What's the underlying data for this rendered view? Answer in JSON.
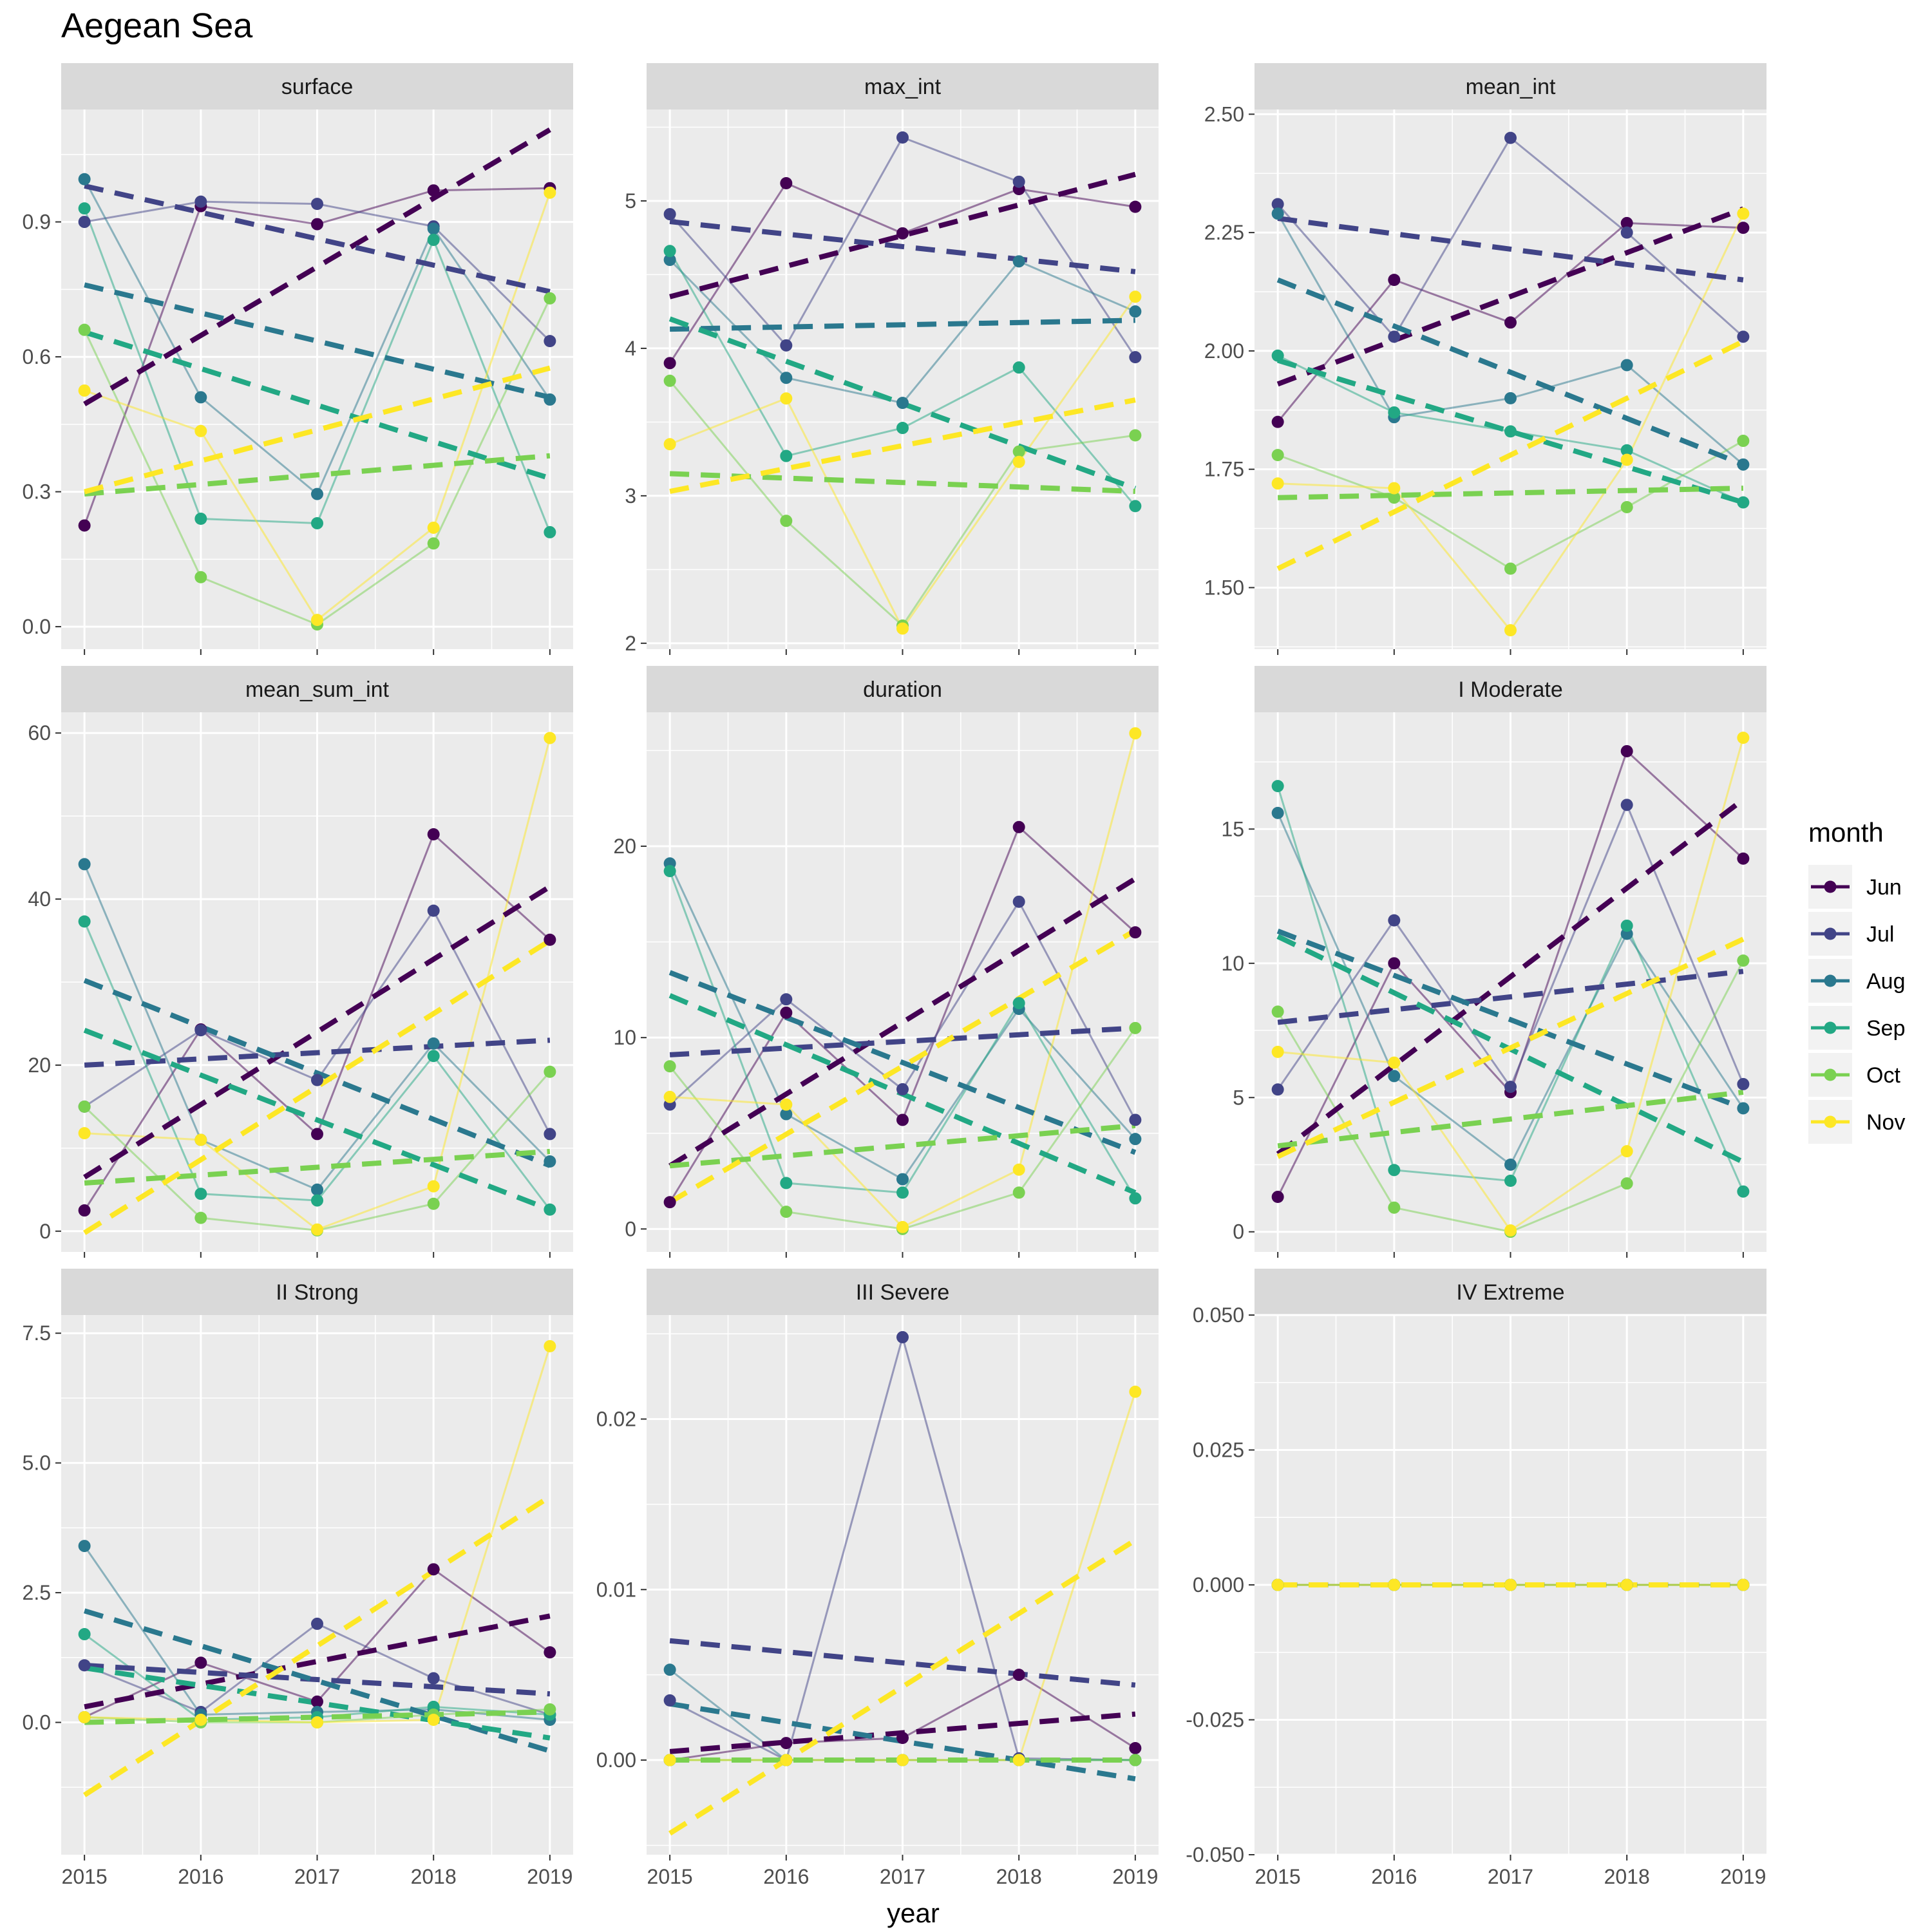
{
  "title": "Aegean Sea",
  "xlabel": "year",
  "legend": {
    "title": "month",
    "position": "right",
    "entries": [
      {
        "label": "Jun",
        "color": "#440154"
      },
      {
        "label": "Jul",
        "color": "#414487"
      },
      {
        "label": "Aug",
        "color": "#2A788E"
      },
      {
        "label": "Sep",
        "color": "#22A884"
      },
      {
        "label": "Oct",
        "color": "#7AD151"
      },
      {
        "label": "Nov",
        "color": "#FDE725"
      }
    ]
  },
  "chart_data": [
    {
      "type": "line",
      "panel": "surface",
      "x": [
        2015,
        2016,
        2017,
        2018,
        2019
      ],
      "ylim": [
        -0.05,
        1.15
      ],
      "yticks": [
        0.0,
        0.3,
        0.6,
        0.9
      ],
      "ytick_labels": [
        "0.0",
        "0.3",
        "0.6",
        "0.9"
      ],
      "series": [
        {
          "name": "Jun",
          "values": [
            0.225,
            0.935,
            0.895,
            0.97,
            0.975
          ],
          "trend": [
            0.495,
            1.105
          ]
        },
        {
          "name": "Jul",
          "values": [
            0.9,
            0.945,
            0.94,
            0.89,
            0.635
          ],
          "trend": [
            0.98,
            0.745
          ]
        },
        {
          "name": "Aug",
          "values": [
            0.995,
            0.51,
            0.295,
            0.885,
            0.505
          ],
          "trend": [
            0.76,
            0.51
          ]
        },
        {
          "name": "Sep",
          "values": [
            0.93,
            0.24,
            0.23,
            0.86,
            0.21
          ],
          "trend": [
            0.655,
            0.33
          ]
        },
        {
          "name": "Oct",
          "values": [
            0.66,
            0.11,
            0.005,
            0.185,
            0.73
          ],
          "trend": [
            0.295,
            0.38
          ]
        },
        {
          "name": "Nov",
          "values": [
            0.525,
            0.435,
            0.015,
            0.22,
            0.965
          ],
          "trend": [
            0.3,
            0.575
          ]
        }
      ]
    },
    {
      "type": "line",
      "panel": "max_int",
      "x": [
        2015,
        2016,
        2017,
        2018,
        2019
      ],
      "ylim": [
        1.96,
        5.62
      ],
      "yticks": [
        2,
        3,
        4,
        5
      ],
      "ytick_labels": [
        "2",
        "3",
        "4",
        "5"
      ],
      "series": [
        {
          "name": "Jun",
          "values": [
            3.9,
            5.12,
            4.78,
            5.08,
            4.96
          ],
          "trend": [
            4.35,
            5.18
          ]
        },
        {
          "name": "Jul",
          "values": [
            4.91,
            4.02,
            5.43,
            5.13,
            3.94
          ],
          "trend": [
            4.86,
            4.52
          ]
        },
        {
          "name": "Aug",
          "values": [
            4.6,
            3.8,
            3.63,
            4.59,
            4.25
          ],
          "trend": [
            4.13,
            4.19
          ]
        },
        {
          "name": "Sep",
          "values": [
            4.66,
            3.27,
            3.46,
            3.87,
            2.93
          ],
          "trend": [
            4.2,
            3.05
          ]
        },
        {
          "name": "Oct",
          "values": [
            3.78,
            2.83,
            2.12,
            3.3,
            3.41
          ],
          "trend": [
            3.15,
            3.03
          ]
        },
        {
          "name": "Nov",
          "values": [
            3.35,
            3.66,
            2.1,
            3.23,
            4.35
          ],
          "trend": [
            3.03,
            3.65
          ]
        }
      ]
    },
    {
      "type": "line",
      "panel": "mean_int",
      "x": [
        2015,
        2016,
        2017,
        2018,
        2019
      ],
      "ylim": [
        1.37,
        2.51
      ],
      "yticks": [
        1.5,
        1.75,
        2.0,
        2.25,
        2.5
      ],
      "ytick_labels": [
        "1.50",
        "1.75",
        "2.00",
        "2.25",
        "2.50"
      ],
      "series": [
        {
          "name": "Jun",
          "values": [
            1.85,
            2.15,
            2.06,
            2.27,
            2.26
          ],
          "trend": [
            1.93,
            2.3
          ]
        },
        {
          "name": "Jul",
          "values": [
            2.31,
            2.03,
            2.45,
            2.25,
            2.03
          ],
          "trend": [
            2.28,
            2.15
          ]
        },
        {
          "name": "Aug",
          "values": [
            2.29,
            1.86,
            1.9,
            1.97,
            1.76
          ],
          "trend": [
            2.15,
            1.76
          ]
        },
        {
          "name": "Sep",
          "values": [
            1.99,
            1.87,
            1.83,
            1.79,
            1.68
          ],
          "trend": [
            1.98,
            1.68
          ]
        },
        {
          "name": "Oct",
          "values": [
            1.78,
            1.69,
            1.54,
            1.67,
            1.81
          ],
          "trend": [
            1.69,
            1.71
          ]
        },
        {
          "name": "Nov",
          "values": [
            1.72,
            1.71,
            1.41,
            1.77,
            2.29
          ],
          "trend": [
            1.54,
            2.02
          ]
        }
      ]
    },
    {
      "type": "line",
      "panel": "mean_sum_int",
      "x": [
        2015,
        2016,
        2017,
        2018,
        2019
      ],
      "ylim": [
        -2.5,
        62.5
      ],
      "yticks": [
        0,
        20,
        40,
        60
      ],
      "ytick_labels": [
        "0",
        "20",
        "40",
        "60"
      ],
      "series": [
        {
          "name": "Jun",
          "values": [
            2.5,
            24.3,
            11.7,
            47.8,
            35.1
          ],
          "trend": [
            6.5,
            41.5
          ]
        },
        {
          "name": "Jul",
          "values": [
            15.0,
            24.2,
            18.2,
            38.6,
            11.7
          ],
          "trend": [
            20.0,
            23.0
          ]
        },
        {
          "name": "Aug",
          "values": [
            44.2,
            11.0,
            5.0,
            22.6,
            8.4
          ],
          "trend": [
            30.2,
            7.9
          ]
        },
        {
          "name": "Sep",
          "values": [
            37.3,
            4.5,
            3.7,
            21.1,
            2.6
          ],
          "trend": [
            24.2,
            2.6
          ]
        },
        {
          "name": "Oct",
          "values": [
            15.0,
            1.6,
            0.1,
            3.3,
            19.2
          ],
          "trend": [
            5.8,
            9.6
          ]
        },
        {
          "name": "Nov",
          "values": [
            11.8,
            11.0,
            0.2,
            5.4,
            59.4
          ],
          "trend": [
            -0.2,
            35.0
          ]
        }
      ]
    },
    {
      "type": "line",
      "panel": "duration",
      "x": [
        2015,
        2016,
        2017,
        2018,
        2019
      ],
      "ylim": [
        -1.2,
        27.0
      ],
      "yticks": [
        0,
        10,
        20
      ],
      "ytick_labels": [
        "0",
        "10",
        "20"
      ],
      "series": [
        {
          "name": "Jun",
          "values": [
            1.4,
            11.3,
            5.7,
            21.0,
            15.5
          ],
          "trend": [
            3.3,
            18.3
          ]
        },
        {
          "name": "Jul",
          "values": [
            6.5,
            12.0,
            7.3,
            17.1,
            5.7
          ],
          "trend": [
            9.1,
            10.5
          ]
        },
        {
          "name": "Aug",
          "values": [
            19.1,
            6.0,
            2.6,
            11.5,
            4.7
          ],
          "trend": [
            13.4,
            4.0
          ]
        },
        {
          "name": "Sep",
          "values": [
            18.7,
            2.4,
            1.9,
            11.8,
            1.6
          ],
          "trend": [
            12.2,
            1.9
          ]
        },
        {
          "name": "Oct",
          "values": [
            8.5,
            0.9,
            0.0,
            1.9,
            10.5
          ],
          "trend": [
            3.3,
            5.4
          ]
        },
        {
          "name": "Nov",
          "values": [
            6.9,
            6.5,
            0.1,
            3.1,
            25.9
          ],
          "trend": [
            1.4,
            15.6
          ]
        }
      ]
    },
    {
      "type": "line",
      "panel": "I Moderate",
      "x": [
        2015,
        2016,
        2017,
        2018,
        2019
      ],
      "ylim": [
        -0.75,
        19.35
      ],
      "yticks": [
        0,
        5,
        10,
        15
      ],
      "ytick_labels": [
        "0",
        "5",
        "10",
        "15"
      ],
      "series": [
        {
          "name": "Jun",
          "values": [
            1.3,
            10.0,
            5.2,
            17.9,
            13.9
          ],
          "trend": [
            2.9,
            16.1
          ]
        },
        {
          "name": "Jul",
          "values": [
            5.3,
            11.6,
            5.4,
            15.9,
            5.5
          ],
          "trend": [
            7.8,
            9.7
          ]
        },
        {
          "name": "Aug",
          "values": [
            15.6,
            5.8,
            2.5,
            11.1,
            4.6
          ],
          "trend": [
            11.2,
            4.6
          ]
        },
        {
          "name": "Sep",
          "values": [
            16.6,
            2.3,
            1.9,
            11.4,
            1.5
          ],
          "trend": [
            11.0,
            2.6
          ]
        },
        {
          "name": "Oct",
          "values": [
            8.2,
            0.9,
            0.0,
            1.8,
            10.1
          ],
          "trend": [
            3.2,
            5.2
          ]
        },
        {
          "name": "Nov",
          "values": [
            6.7,
            6.3,
            0.05,
            3.0,
            18.4
          ],
          "trend": [
            2.8,
            10.9
          ]
        }
      ]
    },
    {
      "type": "line",
      "panel": "II Strong",
      "x": [
        2015,
        2016,
        2017,
        2018,
        2019
      ],
      "ylim": [
        -2.55,
        7.85
      ],
      "yticks": [
        0.0,
        2.5,
        5.0,
        7.5
      ],
      "ytick_labels": [
        "0.0",
        "2.5",
        "5.0",
        "7.5"
      ],
      "series": [
        {
          "name": "Jun",
          "values": [
            0.1,
            1.15,
            0.4,
            2.95,
            1.35
          ],
          "trend": [
            0.3,
            2.05
          ]
        },
        {
          "name": "Jul",
          "values": [
            1.1,
            0.2,
            1.9,
            0.85,
            0.15
          ],
          "trend": [
            1.1,
            0.55
          ]
        },
        {
          "name": "Aug",
          "values": [
            3.4,
            0.15,
            0.2,
            0.25,
            0.05
          ],
          "trend": [
            2.15,
            -0.55
          ]
        },
        {
          "name": "Sep",
          "values": [
            1.7,
            0.05,
            0.1,
            0.3,
            0.15
          ],
          "trend": [
            1.05,
            -0.3
          ]
        },
        {
          "name": "Oct",
          "values": [
            0.1,
            0.0,
            0.0,
            0.15,
            0.25
          ],
          "trend": [
            0.0,
            0.2
          ]
        },
        {
          "name": "Nov",
          "values": [
            0.1,
            0.05,
            0.0,
            0.05,
            7.25
          ],
          "trend": [
            -1.4,
            4.35
          ]
        }
      ]
    },
    {
      "type": "line",
      "panel": "III Severe",
      "x": [
        2015,
        2016,
        2017,
        2018,
        2019
      ],
      "ylim": [
        -0.00555,
        0.0261
      ],
      "yticks": [
        0.0,
        0.01,
        0.02
      ],
      "ytick_labels": [
        "0.00",
        "0.01",
        "0.02"
      ],
      "series": [
        {
          "name": "Jun",
          "values": [
            0.0,
            0.001,
            0.0013,
            0.005,
            0.0007
          ],
          "trend": [
            0.0005,
            0.0027
          ]
        },
        {
          "name": "Jul",
          "values": [
            0.0035,
            0.0,
            0.0248,
            0.0001,
            0.0
          ],
          "trend": [
            0.007,
            0.0044
          ]
        },
        {
          "name": "Aug",
          "values": [
            0.0053,
            0.0,
            0.0,
            0.0,
            0.0
          ],
          "trend": [
            0.0033,
            -0.0011
          ]
        },
        {
          "name": "Sep",
          "values": [
            0.0,
            0.0,
            0.0,
            0.0,
            0.0
          ],
          "trend": [
            0.0,
            0.0
          ]
        },
        {
          "name": "Oct",
          "values": [
            0.0,
            0.0,
            0.0,
            0.0,
            0.0
          ],
          "trend": [
            0.0,
            0.0
          ]
        },
        {
          "name": "Nov",
          "values": [
            0.0,
            0.0,
            0.0,
            0.0,
            0.0216
          ],
          "trend": [
            -0.0043,
            0.0129
          ]
        }
      ]
    },
    {
      "type": "line",
      "panel": "IV Extreme",
      "x": [
        2015,
        2016,
        2017,
        2018,
        2019
      ],
      "ylim": [
        -0.05,
        0.05
      ],
      "yticks": [
        -0.05,
        -0.025,
        0.0,
        0.025,
        0.05
      ],
      "ytick_labels": [
        "-0.050",
        "-0.025",
        "0.000",
        "0.025",
        "0.050"
      ],
      "series": [
        {
          "name": "Jun",
          "values": [
            0,
            0,
            0,
            0,
            0
          ],
          "trend": [
            0,
            0
          ]
        },
        {
          "name": "Jul",
          "values": [
            0,
            0,
            0,
            0,
            0
          ],
          "trend": [
            0,
            0
          ]
        },
        {
          "name": "Aug",
          "values": [
            0,
            0,
            0,
            0,
            0
          ],
          "trend": [
            0,
            0
          ]
        },
        {
          "name": "Sep",
          "values": [
            0,
            0,
            0,
            0,
            0
          ],
          "trend": [
            0,
            0
          ]
        },
        {
          "name": "Oct",
          "values": [
            0,
            0,
            0,
            0,
            0
          ],
          "trend": [
            0,
            0
          ]
        },
        {
          "name": "Nov",
          "values": [
            0,
            0,
            0,
            0,
            0
          ],
          "trend": [
            0,
            0
          ]
        }
      ]
    }
  ]
}
